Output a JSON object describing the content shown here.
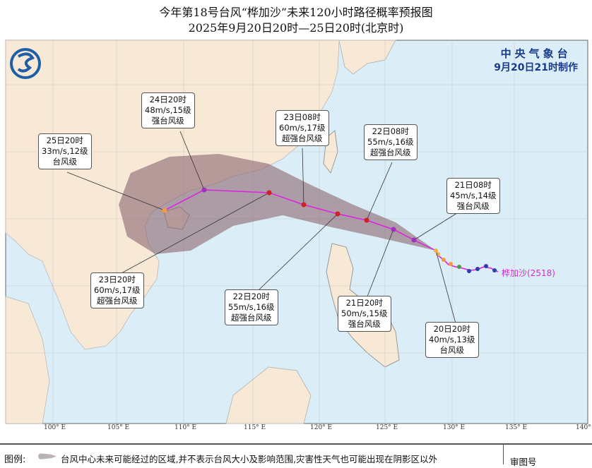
{
  "title": "今年第18号台风“桦加沙”未来120小时路径概率预报图",
  "subtitle": "2025年9月20日20时—25日20时(北京时)",
  "agency": {
    "name": "中央气象台",
    "issued": "9月20日21时制作"
  },
  "storm_label": "桦加沙(2518)",
  "longitude_labels": [
    "100° E",
    "105° E",
    "110° E",
    "115° E",
    "120° E",
    "125° E",
    "130° E",
    "135° E",
    "140°"
  ],
  "forecast_points": [
    {
      "time": "20日20时",
      "wind": "40m/s,13级",
      "category": "台风级"
    },
    {
      "time": "21日08时",
      "wind": "45m/s,14级",
      "category": "强台风级"
    },
    {
      "time": "21日20时",
      "wind": "50m/s,15级",
      "category": "强台风级"
    },
    {
      "time": "22日08时",
      "wind": "55m/s,16级",
      "category": "超强台风级"
    },
    {
      "time": "22日20时",
      "wind": "55m/s,16级",
      "category": "超强台风级"
    },
    {
      "time": "23日08时",
      "wind": "60m/s,17级",
      "category": "超强台风级"
    },
    {
      "time": "23日20时",
      "wind": "60m/s,17级",
      "category": "超强台风级"
    },
    {
      "time": "24日20时",
      "wind": "48m/s,15级",
      "category": "强台风级"
    },
    {
      "time": "25日20时",
      "wind": "33m/s,12级",
      "category": "台风级"
    }
  ],
  "legend": {
    "heading": "图例:",
    "text": "台风中心未来可能经过的区域,并不表示台风大小及影响范围,灾害性天气也可能出现在阴影区以外",
    "right": "审图号"
  },
  "colors": {
    "sea": "#dbeef7",
    "land": "#f8e9d6",
    "cone": "#8a6670",
    "track": "#e020e0",
    "agency": "#1a3b8c"
  }
}
